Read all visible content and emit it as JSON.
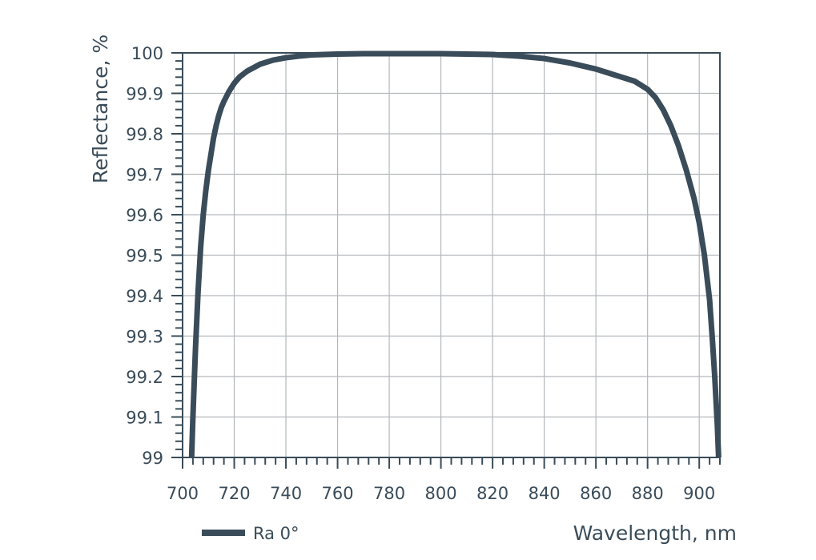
{
  "chart_data": {
    "type": "line",
    "title": "",
    "xlabel": "Wavelength, nm",
    "ylabel": "Reflectance, %",
    "xlim": [
      700,
      908
    ],
    "ylim": [
      99,
      100
    ],
    "x_ticks": [
      700,
      720,
      740,
      760,
      780,
      800,
      820,
      840,
      860,
      880,
      900
    ],
    "y_ticks": [
      99,
      99.1,
      99.2,
      99.3,
      99.4,
      99.5,
      99.6,
      99.7,
      99.8,
      99.9,
      100
    ],
    "x_tick_labels": [
      "700",
      "720",
      "740",
      "760",
      "780",
      "800",
      "820",
      "840",
      "860",
      "880",
      "900"
    ],
    "y_tick_labels": [
      "99",
      "99.1",
      "99.2",
      "99.3",
      "99.4",
      "99.5",
      "99.6",
      "99.7",
      "99.8",
      "99.9",
      "100"
    ],
    "grid": true,
    "legend_position": "bottom-left",
    "series": [
      {
        "name": "Ra 0°",
        "color": "#3a4c59",
        "x": [
          703.5,
          704,
          705,
          706,
          707,
          708,
          709,
          710,
          711,
          712,
          713,
          714,
          715,
          716,
          718,
          720,
          722,
          725,
          730,
          735,
          740,
          745,
          750,
          760,
          770,
          780,
          800,
          820,
          830,
          840,
          850,
          860,
          865,
          870,
          875,
          880,
          883,
          886,
          889,
          892,
          895,
          898,
          900,
          902,
          904,
          905,
          906,
          907,
          907.5
        ],
        "y": [
          99.0,
          99.1,
          99.27,
          99.41,
          99.52,
          99.6,
          99.66,
          99.71,
          99.75,
          99.79,
          99.82,
          99.845,
          99.865,
          99.88,
          99.905,
          99.925,
          99.94,
          99.955,
          99.972,
          99.982,
          99.988,
          99.992,
          99.995,
          99.997,
          99.998,
          99.998,
          99.998,
          99.996,
          99.992,
          99.986,
          99.975,
          99.96,
          99.95,
          99.94,
          99.93,
          99.91,
          99.89,
          99.86,
          99.82,
          99.77,
          99.71,
          99.64,
          99.58,
          99.5,
          99.39,
          99.3,
          99.2,
          99.08,
          99.0
        ]
      }
    ]
  }
}
